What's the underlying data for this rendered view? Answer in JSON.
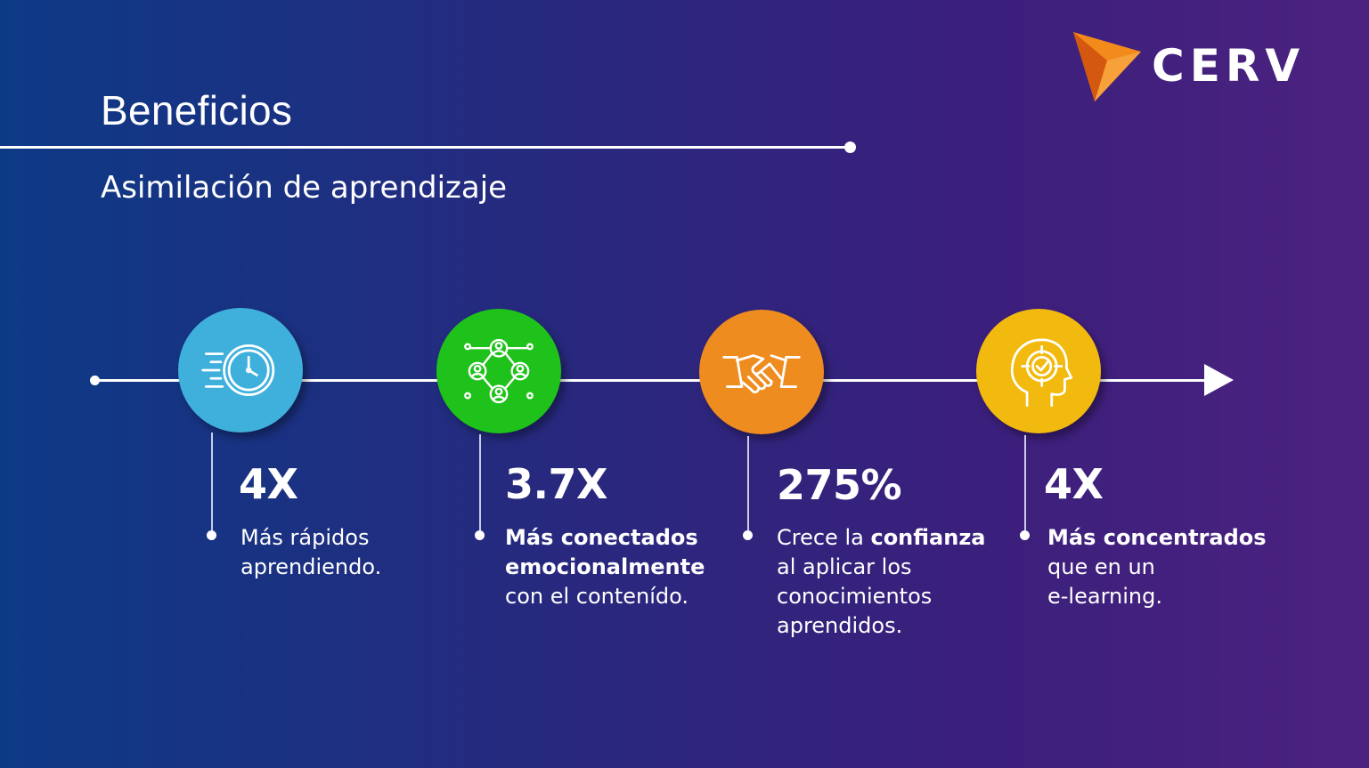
{
  "slide": {
    "title": "Beneficios",
    "subtitle": "Asimilación de aprendizaje"
  },
  "logo": {
    "text": "CERV",
    "mark_icon": "orange-triangle-logo-icon"
  },
  "colors": {
    "circle_1": "#3fb0dc",
    "circle_2": "#1fc21a",
    "circle_3": "#ef8c1f",
    "circle_4": "#f2b90f",
    "logo_orange": "#f38a1c",
    "logo_orange_dark": "#d4580f"
  },
  "benefits": [
    {
      "icon": "fast-clock-icon",
      "value": "4X",
      "lines": [
        {
          "normal": "Más rápidos"
        },
        {
          "normal": "aprendiendo."
        }
      ]
    },
    {
      "icon": "people-network-icon",
      "value": "3.7X",
      "lines": [
        {
          "bold": "Más conectados"
        },
        {
          "bold": "emocionalmente"
        },
        {
          "normal": "con el contenído."
        }
      ]
    },
    {
      "icon": "handshake-icon",
      "value": "275%",
      "lines": [
        {
          "normal": "Crece la ",
          "bold": "confianza"
        },
        {
          "normal": "al aplicar los"
        },
        {
          "normal": "conocimientos"
        },
        {
          "normal": "aprendidos."
        }
      ]
    },
    {
      "icon": "head-target-icon",
      "value": "4X",
      "lines": [
        {
          "bold": "Más concentrados"
        },
        {
          "normal": "que en un"
        },
        {
          "normal": "e-learning."
        }
      ]
    }
  ]
}
